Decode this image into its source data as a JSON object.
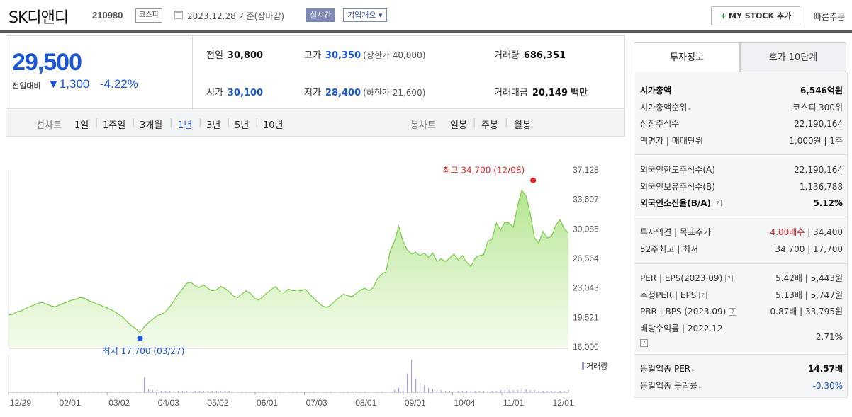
{
  "header": {
    "name": "SK디앤디",
    "code": "210980",
    "market": "코스피",
    "date": "2023.12.28 기준(장마감)",
    "realtime": "실시간",
    "company_info": "기업개요",
    "mystock": "MY STOCK 추가",
    "quick_order": "빠른주문"
  },
  "price": {
    "current": "29,500",
    "diff_label": "전일대비",
    "diff_value": "1,300",
    "pct": "-4.22%",
    "prev_label": "전일",
    "prev": "30,800",
    "high_label": "고가",
    "high": "30,350",
    "upper": "(상한가 40,000)",
    "vol_label": "거래량",
    "vol": "686,351",
    "open_label": "시가",
    "open": "30,100",
    "low_label": "저가",
    "low": "28,400",
    "lower": "(하한가 21,600)",
    "amt_label": "거래대금",
    "amt": "20,149",
    "amt_unit": "백만"
  },
  "tabs": {
    "line_label": "선차트",
    "periods": [
      "1일",
      "1주일",
      "3개월",
      "1년",
      "3년",
      "5년",
      "10년"
    ],
    "selected": "1년",
    "candle_label": "봉차트",
    "candles": [
      "일봉",
      "주봉",
      "월봉"
    ]
  },
  "chart_data": {
    "type": "area",
    "y_ticks": [
      "37,128",
      "33,607",
      "30,085",
      "26,564",
      "23,043",
      "19,521",
      "16,000"
    ],
    "ylim": [
      16000,
      37128
    ],
    "x_ticks": [
      "12/29",
      "02/01",
      "03/02",
      "04/03",
      "05/02",
      "06/01",
      "07/03",
      "08/01",
      "09/01",
      "10/04",
      "11/01",
      "12/01"
    ],
    "max_label": "최고 34,700 (12/08)",
    "min_label": "최저 17,700 (03/27)",
    "volume_label": "거래량",
    "values": [
      19800,
      19900,
      20200,
      20300,
      20600,
      20800,
      21000,
      21200,
      21300,
      21100,
      20900,
      20800,
      21000,
      21200,
      21400,
      21600,
      21700,
      21900,
      21800,
      21500,
      21300,
      21100,
      20900,
      20700,
      20500,
      20200,
      19900,
      19500,
      19000,
      18500,
      18200,
      17700,
      18400,
      18900,
      19300,
      19700,
      19900,
      20200,
      20800,
      21500,
      22300,
      22900,
      23600,
      23700,
      23300,
      23100,
      23400,
      23000,
      22700,
      22800,
      23200,
      23000,
      22600,
      22100,
      21900,
      22300,
      22700,
      22400,
      21800,
      21600,
      22000,
      22500,
      22900,
      23200,
      22600,
      22500,
      22900,
      22700,
      22800,
      22700,
      22900,
      22300,
      21800,
      21300,
      20900,
      20700,
      21000,
      21500,
      21900,
      22300,
      22100,
      22000,
      22400,
      22800,
      23000,
      22700,
      23100,
      24200,
      24700,
      25000,
      27500,
      28600,
      30400,
      28600,
      27600,
      27100,
      27300,
      26900,
      27200,
      26700,
      27200,
      26200,
      26500,
      26200,
      26600,
      27100,
      26400,
      26900,
      26100,
      25600,
      26600,
      26900,
      27000,
      28600,
      28900,
      30800,
      29900,
      30900,
      30800,
      30300,
      32800,
      34700,
      34000,
      31900,
      29000,
      28400,
      29800,
      29000,
      29200,
      30500,
      31200,
      30100,
      29600
    ],
    "volumes": [
      1,
      1,
      1,
      1,
      1,
      1,
      1,
      1,
      1,
      1,
      1,
      1,
      1,
      1,
      1,
      1,
      1,
      1,
      1,
      1,
      1,
      1,
      1,
      1,
      1,
      1,
      1,
      1,
      1,
      1,
      1,
      1,
      20,
      4,
      3,
      3,
      2,
      2,
      2,
      2,
      2,
      2,
      2,
      2,
      2,
      2,
      2,
      2,
      2,
      2,
      2,
      2,
      2,
      1,
      1,
      1,
      1,
      1,
      1,
      1,
      1,
      1,
      1,
      1,
      1,
      1,
      1,
      1,
      1,
      1,
      1,
      1,
      1,
      1,
      1,
      1,
      1,
      1,
      1,
      1,
      1,
      1,
      1,
      1,
      1,
      1,
      1,
      1,
      1,
      1,
      1,
      3,
      6,
      10,
      26,
      45,
      18,
      13,
      9,
      6,
      4,
      3,
      3,
      2,
      2,
      2,
      2,
      2,
      2,
      2,
      2,
      2,
      2,
      2,
      2,
      2,
      3,
      3,
      3,
      3,
      3,
      5,
      4,
      3,
      3,
      2,
      2,
      2,
      2,
      2,
      2,
      2,
      3
    ]
  },
  "panel": {
    "tab_on": "투자정보",
    "tab_off": "호가 10단계",
    "rows1": [
      {
        "l": "시가총액",
        "r": "6,546억원",
        "b": true
      },
      {
        "l": "시가총액순위",
        "r": "코스피 300위"
      },
      {
        "l": "상장주식수",
        "r": "22,190,164"
      },
      {
        "l": "액면가 | 매매단위",
        "r": "1,000원 | 1주"
      }
    ],
    "rows2": [
      {
        "l": "외국인한도주식수(A)",
        "r": "22,190,164"
      },
      {
        "l": "외국인보유주식수(B)",
        "r": "1,136,788"
      },
      {
        "l": "외국인소진율(B/A)",
        "r": "5.12%",
        "b": true
      }
    ],
    "opinion_label": "투자의견 | 목표주가",
    "opinion": "4.00매수",
    "target": "| 34,400",
    "w52_label": "52주최고 | 최저",
    "w52": "34,700 | 17,700",
    "rows4": [
      {
        "l": "PER | EPS(2023.09)",
        "r": "5.42배 | 5,443원"
      },
      {
        "l": "추정PER | EPS",
        "r": "5.13배 | 5,747원"
      },
      {
        "l": "PBR | BPS (2023.09)",
        "r": "0.87배 | 33,795원"
      }
    ],
    "div_label": "배당수익률 | 2022.12",
    "div": "2.71%",
    "same_per_label": "동일업종 PER",
    "same_per": "14.57배",
    "same_rate_label": "동일업종 등락률",
    "same_rate": "-0.30%"
  }
}
